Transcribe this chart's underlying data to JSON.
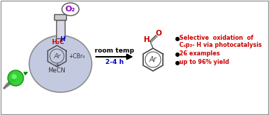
{
  "bg_color": "#ffffff",
  "border_color": "#888888",
  "flask_fill": "#9ba8cc",
  "flask_fill_alpha": 0.6,
  "o2_text": "O₂",
  "o2_color": "#8800bb",
  "h2c_text": "H₂C",
  "h2c_color": "#cc0000",
  "h_text": "H",
  "h_color": "#0000cc",
  "cbr4_text": "+CBr₄",
  "mecn_text": "MeCN",
  "arrow_label1": "room temp",
  "arrow_label2": "2-4 h",
  "arrow_label_color1": "#000000",
  "arrow_label_color2": "#0000cc",
  "aldehyde_h_color": "#cc0000",
  "aldehyde_o_color": "#cc0000",
  "bullet1a": "Selective  oxidation  of",
  "bullet1b": "Cₛp₃- H via photocatalysis",
  "bullet2": "26 examples",
  "bullet3": "up to 96% yield",
  "bullet_color": "#cc0000",
  "ar_color": "#444444",
  "ring_color": "#444444",
  "led_green": "#22cc22",
  "led_dark": "#008800"
}
